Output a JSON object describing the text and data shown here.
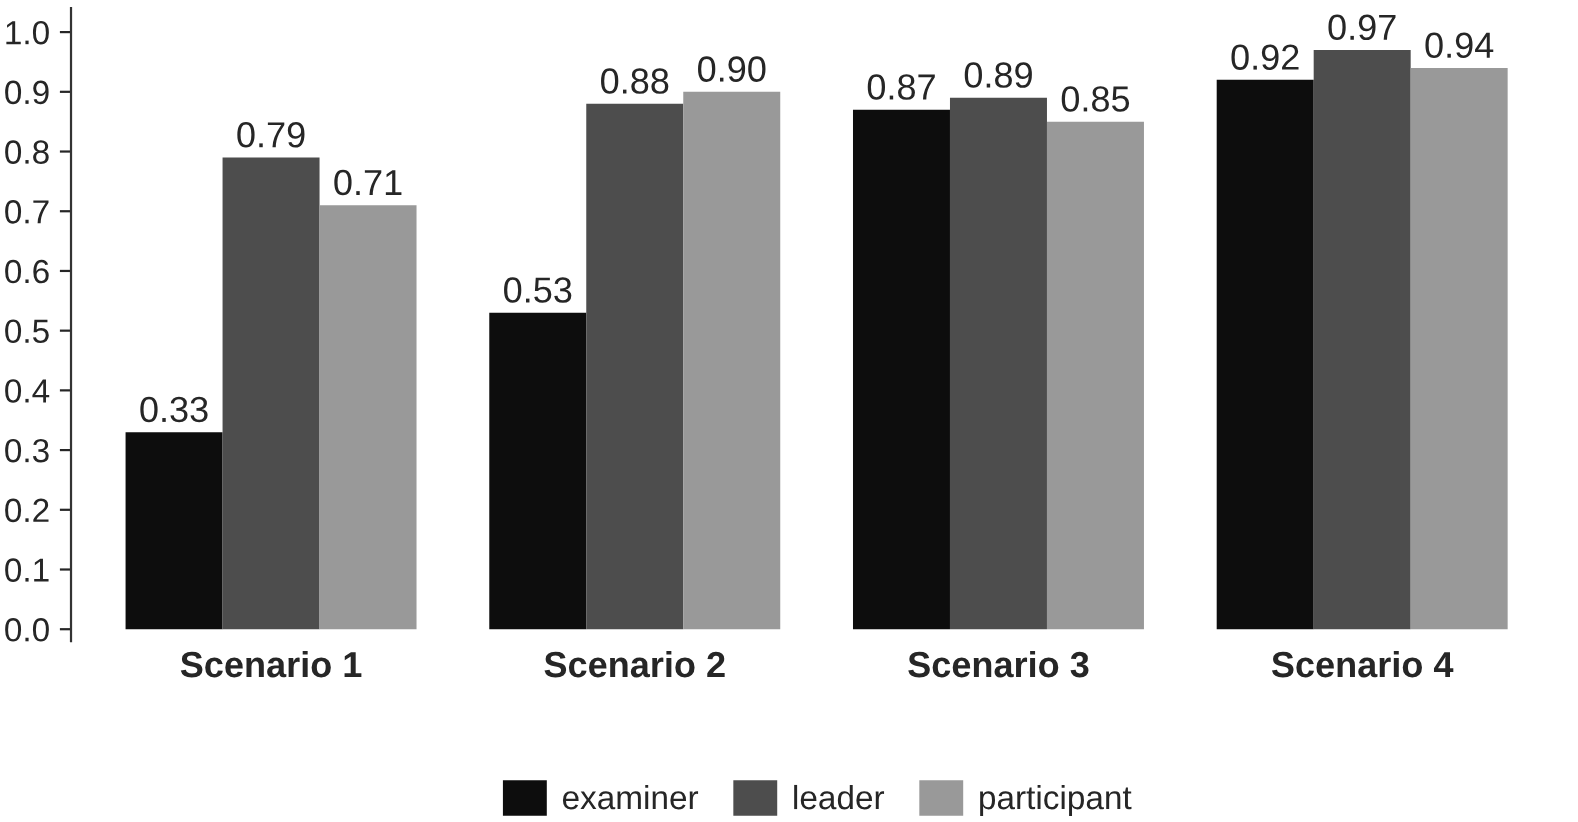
{
  "chart_data": {
    "type": "bar",
    "categories": [
      "Scenario 1",
      "Scenario 2",
      "Scenario 3",
      "Scenario 4"
    ],
    "series": [
      {
        "name": "examiner",
        "color": "#0d0d0d",
        "values": [
          0.33,
          0.53,
          0.87,
          0.92
        ],
        "value_labels": [
          "0.33",
          "0.53",
          "0.87",
          "0.92"
        ]
      },
      {
        "name": "leader",
        "color": "#4d4d4d",
        "values": [
          0.79,
          0.88,
          0.89,
          0.97
        ],
        "value_labels": [
          "0.79",
          "0.88",
          "0.89",
          "0.97"
        ]
      },
      {
        "name": "participant",
        "color": "#999999",
        "values": [
          0.71,
          0.9,
          0.85,
          0.94
        ],
        "value_labels": [
          "0.71",
          "0.90",
          "0.85",
          "0.94"
        ]
      }
    ],
    "ylim": [
      -0.02,
      1.04
    ],
    "yticks": [
      {
        "value": 0,
        "label": "0.0"
      },
      {
        "value": 0.1,
        "label": "0.1"
      },
      {
        "value": 0.2,
        "label": "0.2"
      },
      {
        "value": 0.3,
        "label": "0.3"
      },
      {
        "value": 0.4,
        "label": "0.4"
      },
      {
        "value": 0.5,
        "label": "0.5"
      },
      {
        "value": 0.6,
        "label": "0.6"
      },
      {
        "value": 0.7,
        "label": "0.7"
      },
      {
        "value": 0.8,
        "label": "0.8"
      },
      {
        "value": 0.9,
        "label": "0.9"
      },
      {
        "value": 1.0,
        "label": "1.0"
      }
    ],
    "grid": false,
    "legend": "bottom"
  }
}
